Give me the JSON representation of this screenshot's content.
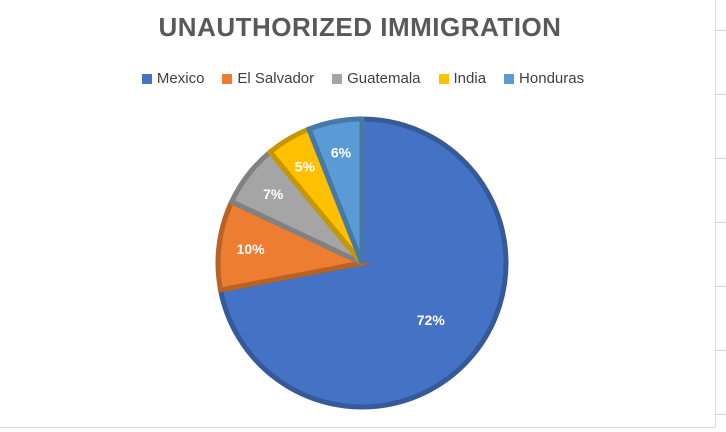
{
  "chart_data": {
    "type": "pie",
    "title": "UNAUTHORIZED IMMIGRATION",
    "categories": [
      "Mexico",
      "El Salvador",
      "Guatemala",
      "India",
      "Honduras"
    ],
    "values": [
      72,
      10,
      7,
      5,
      6
    ],
    "labels": [
      "72%",
      "10%",
      "7%",
      "5%",
      "6%"
    ],
    "colors": [
      "#4472c4",
      "#ed7d31",
      "#a5a5a5",
      "#ffc000",
      "#5b9bd5"
    ],
    "legend_position": "top"
  }
}
